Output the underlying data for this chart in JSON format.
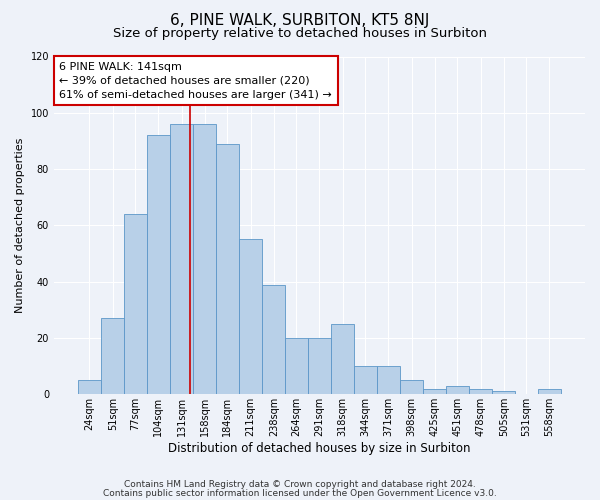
{
  "title": "6, PINE WALK, SURBITON, KT5 8NJ",
  "subtitle": "Size of property relative to detached houses in Surbiton",
  "xlabel": "Distribution of detached houses by size in Surbiton",
  "ylabel": "Number of detached properties",
  "bar_labels": [
    "24sqm",
    "51sqm",
    "77sqm",
    "104sqm",
    "131sqm",
    "158sqm",
    "184sqm",
    "211sqm",
    "238sqm",
    "264sqm",
    "291sqm",
    "318sqm",
    "344sqm",
    "371sqm",
    "398sqm",
    "425sqm",
    "451sqm",
    "478sqm",
    "505sqm",
    "531sqm",
    "558sqm"
  ],
  "bar_values": [
    5,
    27,
    64,
    92,
    96,
    96,
    89,
    55,
    39,
    20,
    20,
    25,
    10,
    10,
    5,
    2,
    3,
    2,
    1,
    0,
    2
  ],
  "bar_color": "#b8d0e8",
  "bar_edge_color": "#5b96c8",
  "vline_x": 141,
  "annotation_text": "6 PINE WALK: 141sqm\n← 39% of detached houses are smaller (220)\n61% of semi-detached houses are larger (341) →",
  "annotation_box_color": "#ffffff",
  "annotation_box_edge_color": "#cc0000",
  "vline_color": "#cc0000",
  "ylim": [
    0,
    120
  ],
  "yticks": [
    0,
    20,
    40,
    60,
    80,
    100,
    120
  ],
  "footer_line1": "Contains HM Land Registry data © Crown copyright and database right 2024.",
  "footer_line2": "Contains public sector information licensed under the Open Government Licence v3.0.",
  "bg_color": "#eef2f9",
  "grid_color": "#ffffff",
  "title_fontsize": 11,
  "subtitle_fontsize": 9.5,
  "xlabel_fontsize": 8.5,
  "ylabel_fontsize": 8,
  "tick_fontsize": 7,
  "annotation_fontsize": 8,
  "footer_fontsize": 6.5
}
